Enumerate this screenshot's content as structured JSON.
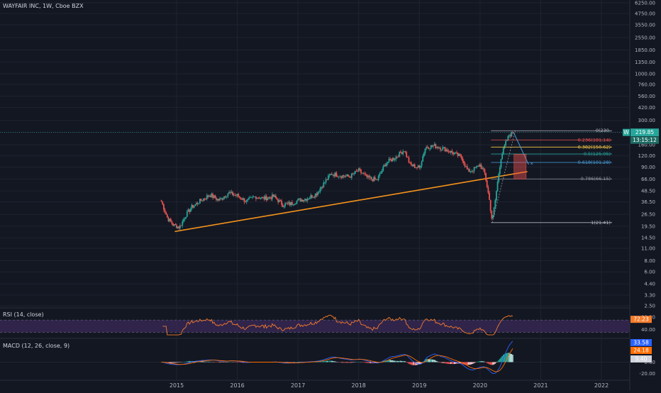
{
  "header": {
    "title": "WAYFAIR INC, 1W, Cboe BZX"
  },
  "colors": {
    "background": "#131722",
    "grid": "#1f2330",
    "up": "#26a69a",
    "down": "#ef5350",
    "trendline": "#f7931a",
    "rsi_line": "#f57c2b",
    "rsi_band": "#3b2a5a",
    "macd_line": "#2962ff",
    "signal_line": "#ff6d00",
    "price_tag": "#26a69a"
  },
  "price_axis": {
    "labels": [
      "6250.00",
      "4750.00",
      "3550.00",
      "2550.00",
      "1850.00",
      "1350.00",
      "1000.00",
      "760.00",
      "560.00",
      "420.00",
      "300.00",
      "220.00",
      "160.00",
      "120.00",
      "90.00",
      "66.00",
      "48.50",
      "36.50",
      "26.50",
      "19.50",
      "14.50",
      "11.00",
      "8.00",
      "6.00",
      "4.40",
      "3.30",
      "2.50"
    ],
    "scale": "log",
    "current_price": "219.85",
    "countdown": "13:15:12",
    "symbol_badge": "W"
  },
  "time_axis": {
    "labels": [
      "2015",
      "2016",
      "2017",
      "2018",
      "2019",
      "2020",
      "2021",
      "2022"
    ]
  },
  "fibonacci": {
    "levels": [
      {
        "label": "0(230.",
        "price": 230,
        "color": "#b2b5be"
      },
      {
        "label": "0.236(181.14)",
        "price": 181.14,
        "color": "#ef5350"
      },
      {
        "label": "0.382(150.62)",
        "price": 150.62,
        "color": "#f7c948"
      },
      {
        "label": "0.5(125.95)",
        "price": 125.95,
        "color": "#26a69a"
      },
      {
        "label": "0.618(101.28)",
        "price": 101.28,
        "color": "#4aa3df"
      },
      {
        "label": "0.786(66.15)",
        "price": 66.15,
        "color": "#9598a1"
      },
      {
        "label": "1(21.41)",
        "price": 21.41,
        "color": "#b2b5be"
      }
    ]
  },
  "rsi": {
    "title": "RSI (14, close)",
    "value": "72.23",
    "axis_labels": [
      "80.00",
      "40.00"
    ]
  },
  "macd": {
    "title": "MACD (12, 26, close, 9)",
    "macd_value": "33.58",
    "signal_value": "24.18",
    "hist_value": "9.40",
    "axis_labels": [
      "0.00",
      "-20.00"
    ]
  },
  "chart_data": {
    "type": "candlestick",
    "title": "WAYFAIR INC, 1W, Cboe BZX",
    "y_scale": "log",
    "x_range": [
      2014.8,
      2022.5
    ],
    "y_range": [
      2.5,
      6250
    ],
    "weekly_close_anchors": [
      {
        "t": 2014.75,
        "close": 37
      },
      {
        "t": 2014.85,
        "close": 24
      },
      {
        "t": 2014.95,
        "close": 20
      },
      {
        "t": 2015.05,
        "close": 19
      },
      {
        "t": 2015.15,
        "close": 26
      },
      {
        "t": 2015.25,
        "close": 32
      },
      {
        "t": 2015.4,
        "close": 38
      },
      {
        "t": 2015.55,
        "close": 44
      },
      {
        "t": 2015.7,
        "close": 38
      },
      {
        "t": 2015.85,
        "close": 46
      },
      {
        "t": 2016.0,
        "close": 43
      },
      {
        "t": 2016.15,
        "close": 37
      },
      {
        "t": 2016.3,
        "close": 42
      },
      {
        "t": 2016.45,
        "close": 40
      },
      {
        "t": 2016.6,
        "close": 42
      },
      {
        "t": 2016.75,
        "close": 34
      },
      {
        "t": 2016.9,
        "close": 35
      },
      {
        "t": 2017.0,
        "close": 38
      },
      {
        "t": 2017.15,
        "close": 40
      },
      {
        "t": 2017.3,
        "close": 45
      },
      {
        "t": 2017.45,
        "close": 62
      },
      {
        "t": 2017.55,
        "close": 76
      },
      {
        "t": 2017.7,
        "close": 72
      },
      {
        "t": 2017.85,
        "close": 70
      },
      {
        "t": 2018.0,
        "close": 82
      },
      {
        "t": 2018.15,
        "close": 68
      },
      {
        "t": 2018.3,
        "close": 64
      },
      {
        "t": 2018.45,
        "close": 100
      },
      {
        "t": 2018.6,
        "close": 115
      },
      {
        "t": 2018.75,
        "close": 140
      },
      {
        "t": 2018.85,
        "close": 95
      },
      {
        "t": 2019.0,
        "close": 88
      },
      {
        "t": 2019.1,
        "close": 150
      },
      {
        "t": 2019.25,
        "close": 155
      },
      {
        "t": 2019.4,
        "close": 145
      },
      {
        "t": 2019.55,
        "close": 130
      },
      {
        "t": 2019.7,
        "close": 115
      },
      {
        "t": 2019.8,
        "close": 80
      },
      {
        "t": 2019.9,
        "close": 85
      },
      {
        "t": 2020.0,
        "close": 95
      },
      {
        "t": 2020.08,
        "close": 75
      },
      {
        "t": 2020.15,
        "close": 40
      },
      {
        "t": 2020.2,
        "close": 22
      },
      {
        "t": 2020.25,
        "close": 38
      },
      {
        "t": 2020.3,
        "close": 70
      },
      {
        "t": 2020.35,
        "close": 120
      },
      {
        "t": 2020.42,
        "close": 165
      },
      {
        "t": 2020.48,
        "close": 205
      },
      {
        "t": 2020.55,
        "close": 219.85
      }
    ]
  }
}
